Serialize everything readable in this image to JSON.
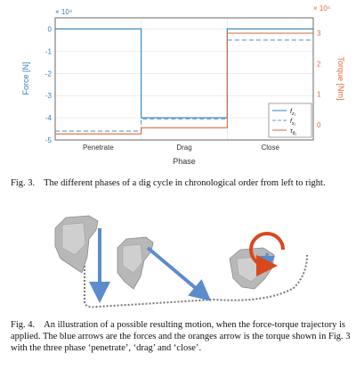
{
  "chart_data": {
    "type": "line",
    "categories": [
      "Penetrate",
      "Drag",
      "Close"
    ],
    "xlabel": "Phase",
    "ylabel_left": "Force [N]",
    "ylabel_right": "Torque [Nm]",
    "left_exponent": "× 10⁴",
    "right_exponent": "× 10⁴",
    "ylim_left": [
      -5,
      0.5
    ],
    "ylim_right": [
      -0.5,
      3.5
    ],
    "yticks_left": [
      "0",
      "-1",
      "-2",
      "-3",
      "-4",
      "-5"
    ],
    "yticks_right": [
      "3",
      "2",
      "1",
      "0"
    ],
    "grid": true,
    "legend_position": "bottom-right",
    "series": [
      {
        "name": "f_{z1}",
        "axis": "left",
        "style": "solid",
        "color": "#2f7fbf",
        "values": [
          0,
          -4,
          0
        ]
      },
      {
        "name": "f_{x1}",
        "axis": "left",
        "style": "dashed",
        "color": "#5b9bd5",
        "values": [
          -4.6,
          -4.05,
          -0.5
        ]
      },
      {
        "name": "τ_{θ1}",
        "axis": "right",
        "style": "solid",
        "color": "#e06a3a",
        "values": [
          -0.3,
          -0.1,
          3.0
        ]
      }
    ]
  },
  "fig3": {
    "label": "Fig. 3.",
    "caption": "The different phases of a dig cycle in chronological order from left to right."
  },
  "fig4": {
    "label": "Fig. 4.",
    "caption": "An illustration of a possible resulting motion, when the force-torque trajectory is applied. The blue arrows are the forces and the oranges arrow is the torque shown in Fig. 3 with the three phase ‘penetrate’, ‘drag’ and ‘close’."
  },
  "colors": {
    "force": "#2f7fbf",
    "torque": "#e06a3a",
    "arrow_blue": "#5b8ccc",
    "arrow_orange": "#d9471e",
    "bucket": "#b8b8b8"
  }
}
